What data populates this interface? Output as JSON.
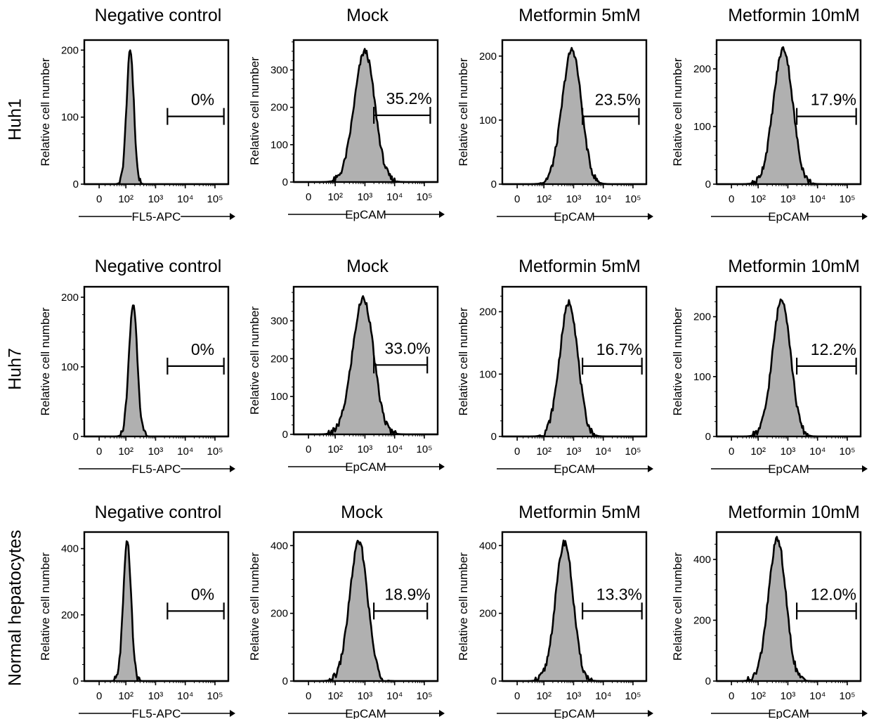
{
  "figure": {
    "rows": [
      {
        "label": "Huh1"
      },
      {
        "label": "Huh7"
      },
      {
        "label": "Normal hepatocytes"
      }
    ],
    "columns": [
      {
        "title": "Negative control",
        "xlabel": "FL5-APC"
      },
      {
        "title": "Mock",
        "xlabel": "EpCAM"
      },
      {
        "title": "Metformin 5mM",
        "xlabel": "EpCAM"
      },
      {
        "title": "Metformin 10mM",
        "xlabel": "EpCAM"
      }
    ],
    "ylabel": "Relative cell number",
    "x_ticks": [
      "0",
      "10²",
      "10³",
      "10⁴",
      "10⁵"
    ],
    "colors": {
      "fill": "#b0b0b0",
      "line": "#000000"
    }
  },
  "chart_data": [
    {
      "type": "area",
      "row": "Huh1",
      "title": "Negative control",
      "xlabel": "FL5-APC",
      "ylabel": "Relative cell number",
      "x_scale": "log",
      "yticks": [
        0,
        100,
        200
      ],
      "ylim": [
        0,
        215
      ],
      "series": [
        {
          "peak_log10": 2.15,
          "sigma": 0.12,
          "peak_count": 200
        }
      ],
      "gate": {
        "label": "0%",
        "from_log10": 3.4,
        "to_log10": 5.3
      }
    },
    {
      "type": "area",
      "row": "Huh1",
      "title": "Mock",
      "xlabel": "EpCAM",
      "ylabel": "Relative cell number",
      "x_scale": "log",
      "yticks": [
        0,
        100,
        200,
        300
      ],
      "ylim": [
        0,
        380
      ],
      "series": [
        {
          "peak_log10": 3.0,
          "sigma": 0.34,
          "peak_count": 350
        }
      ],
      "gate": {
        "label": "35.2%",
        "from_log10": 3.3,
        "to_log10": 5.2
      }
    },
    {
      "type": "area",
      "row": "Huh1",
      "title": "Metformin 5mM",
      "xlabel": "EpCAM",
      "ylabel": "Relative cell number",
      "x_scale": "log",
      "yticks": [
        0,
        100,
        200
      ],
      "ylim": [
        0,
        225
      ],
      "series": [
        {
          "peak_log10": 2.95,
          "sigma": 0.32,
          "peak_count": 210
        }
      ],
      "gate": {
        "label": "23.5%",
        "from_log10": 3.3,
        "to_log10": 5.2
      }
    },
    {
      "type": "area",
      "row": "Huh1",
      "title": "Metformin 10mM",
      "xlabel": "EpCAM",
      "ylabel": "Relative cell number",
      "x_scale": "log",
      "yticks": [
        0,
        100,
        200
      ],
      "ylim": [
        0,
        250
      ],
      "series": [
        {
          "peak_log10": 2.85,
          "sigma": 0.32,
          "peak_count": 235
        }
      ],
      "gate": {
        "label": "17.9%",
        "from_log10": 3.3,
        "to_log10": 5.3
      }
    },
    {
      "type": "area",
      "row": "Huh7",
      "title": "Negative control",
      "xlabel": "FL5-APC",
      "ylabel": "Relative cell number",
      "x_scale": "log",
      "yticks": [
        0,
        100,
        200
      ],
      "ylim": [
        0,
        215
      ],
      "series": [
        {
          "peak_log10": 2.25,
          "sigma": 0.14,
          "peak_count": 190
        }
      ],
      "gate": {
        "label": "0%",
        "from_log10": 3.4,
        "to_log10": 5.3
      }
    },
    {
      "type": "area",
      "row": "Huh7",
      "title": "Mock",
      "xlabel": "EpCAM",
      "ylabel": "Relative cell number",
      "x_scale": "log",
      "yticks": [
        0,
        100,
        200,
        300
      ],
      "ylim": [
        0,
        390
      ],
      "series": [
        {
          "peak_log10": 2.95,
          "sigma": 0.35,
          "peak_count": 360
        }
      ],
      "gate": {
        "label": "33.0%",
        "from_log10": 3.3,
        "to_log10": 5.1
      }
    },
    {
      "type": "area",
      "row": "Huh7",
      "title": "Metformin 5mM",
      "xlabel": "EpCAM",
      "ylabel": "Relative cell number",
      "x_scale": "log",
      "yticks": [
        0,
        100,
        200
      ],
      "ylim": [
        0,
        240
      ],
      "series": [
        {
          "peak_log10": 2.85,
          "sigma": 0.3,
          "peak_count": 215
        }
      ],
      "gate": {
        "label": "16.7%",
        "from_log10": 3.3,
        "to_log10": 5.3
      }
    },
    {
      "type": "area",
      "row": "Huh7",
      "title": "Metformin 10mM",
      "xlabel": "EpCAM",
      "ylabel": "Relative cell number",
      "x_scale": "log",
      "yticks": [
        0,
        100,
        200
      ],
      "ylim": [
        0,
        250
      ],
      "series": [
        {
          "peak_log10": 2.8,
          "sigma": 0.3,
          "peak_count": 230
        }
      ],
      "gate": {
        "label": "12.2%",
        "from_log10": 3.3,
        "to_log10": 5.3
      }
    },
    {
      "type": "area",
      "row": "Normal hepatocytes",
      "title": "Negative control",
      "xlabel": "FL5-APC",
      "ylabel": "Relative cell number",
      "x_scale": "log",
      "yticks": [
        0,
        200,
        400
      ],
      "ylim": [
        0,
        450
      ],
      "series": [
        {
          "peak_log10": 2.05,
          "sigma": 0.13,
          "peak_count": 420
        }
      ],
      "gate": {
        "label": "0%",
        "from_log10": 3.4,
        "to_log10": 5.3
      }
    },
    {
      "type": "area",
      "row": "Normal hepatocytes",
      "title": "Mock",
      "xlabel": "EpCAM",
      "ylabel": "Relative cell number",
      "x_scale": "log",
      "yticks": [
        0,
        200,
        400
      ],
      "ylim": [
        0,
        440
      ],
      "series": [
        {
          "peak_log10": 2.8,
          "sigma": 0.3,
          "peak_count": 410
        }
      ],
      "gate": {
        "label": "18.9%",
        "from_log10": 3.3,
        "to_log10": 5.1
      }
    },
    {
      "type": "area",
      "row": "Normal hepatocytes",
      "title": "Metformin 5mM",
      "xlabel": "EpCAM",
      "ylabel": "Relative cell number",
      "x_scale": "log",
      "yticks": [
        0,
        200,
        400
      ],
      "ylim": [
        0,
        440
      ],
      "series": [
        {
          "peak_log10": 2.7,
          "sigma": 0.29,
          "peak_count": 410
        }
      ],
      "gate": {
        "label": "13.3%",
        "from_log10": 3.3,
        "to_log10": 5.3
      }
    },
    {
      "type": "area",
      "row": "Normal hepatocytes",
      "title": "Metformin 10mM",
      "xlabel": "EpCAM",
      "ylabel": "Relative cell number",
      "x_scale": "log",
      "yticks": [
        0,
        200,
        400
      ],
      "ylim": [
        0,
        490
      ],
      "series": [
        {
          "peak_log10": 2.65,
          "sigma": 0.29,
          "peak_count": 465
        }
      ],
      "gate": {
        "label": "12.0%",
        "from_log10": 3.3,
        "to_log10": 5.3
      }
    }
  ]
}
